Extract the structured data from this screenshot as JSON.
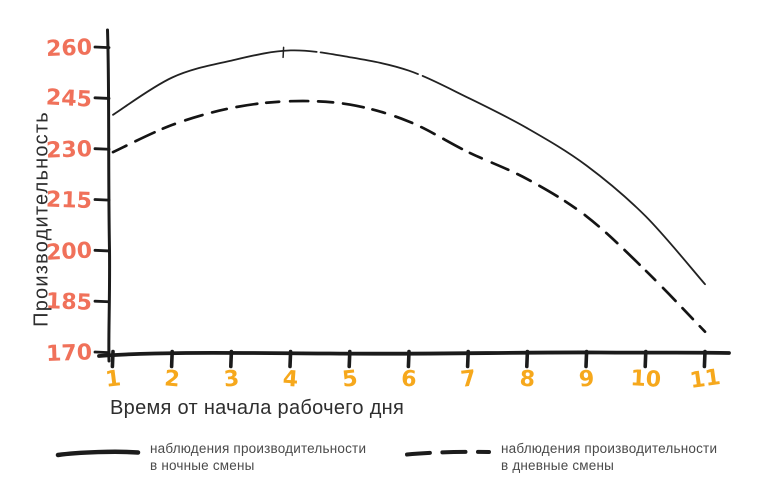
{
  "chart_data": {
    "type": "line",
    "title": "",
    "xlabel": "Время от начала рабочего дня",
    "ylabel": "Производительность",
    "x": [
      1,
      2,
      3,
      4,
      5,
      6,
      7,
      8,
      9,
      10,
      11
    ],
    "x_tick_labels": [
      "1",
      "2",
      "3",
      "4",
      "5",
      "6",
      "7",
      "8",
      "9",
      "10",
      "11"
    ],
    "y_ticks": [
      170,
      185,
      200,
      215,
      230,
      245,
      260
    ],
    "xlim": [
      1,
      11
    ],
    "ylim": [
      170,
      260
    ],
    "grid": false,
    "legend_position": "bottom",
    "series": [
      {
        "name": "наблюдения производительности в ночные смены",
        "style": "solid",
        "values": [
          240,
          251,
          256,
          259,
          257,
          253,
          245,
          236,
          225,
          210,
          190
        ]
      },
      {
        "name": "наблюдения производительности в дневные смены",
        "style": "dashed",
        "values": [
          229,
          237,
          242,
          244,
          243,
          238,
          229,
          221,
          210,
          194,
          176
        ]
      }
    ]
  },
  "legend": {
    "night": {
      "line1": "наблюдения производительности",
      "line2": "в ночные смены"
    },
    "day": {
      "line1": "наблюдения производительности",
      "line2": "в дневные смены"
    }
  },
  "colors": {
    "axis": "#1b1b1b",
    "night_line": "#222222",
    "day_line": "#141414",
    "y_tick_labels": "#f0715a",
    "x_tick_labels": "#f6a81c",
    "axis_titles": "#2e2e2e",
    "legend_text": "#4a4a4a"
  }
}
